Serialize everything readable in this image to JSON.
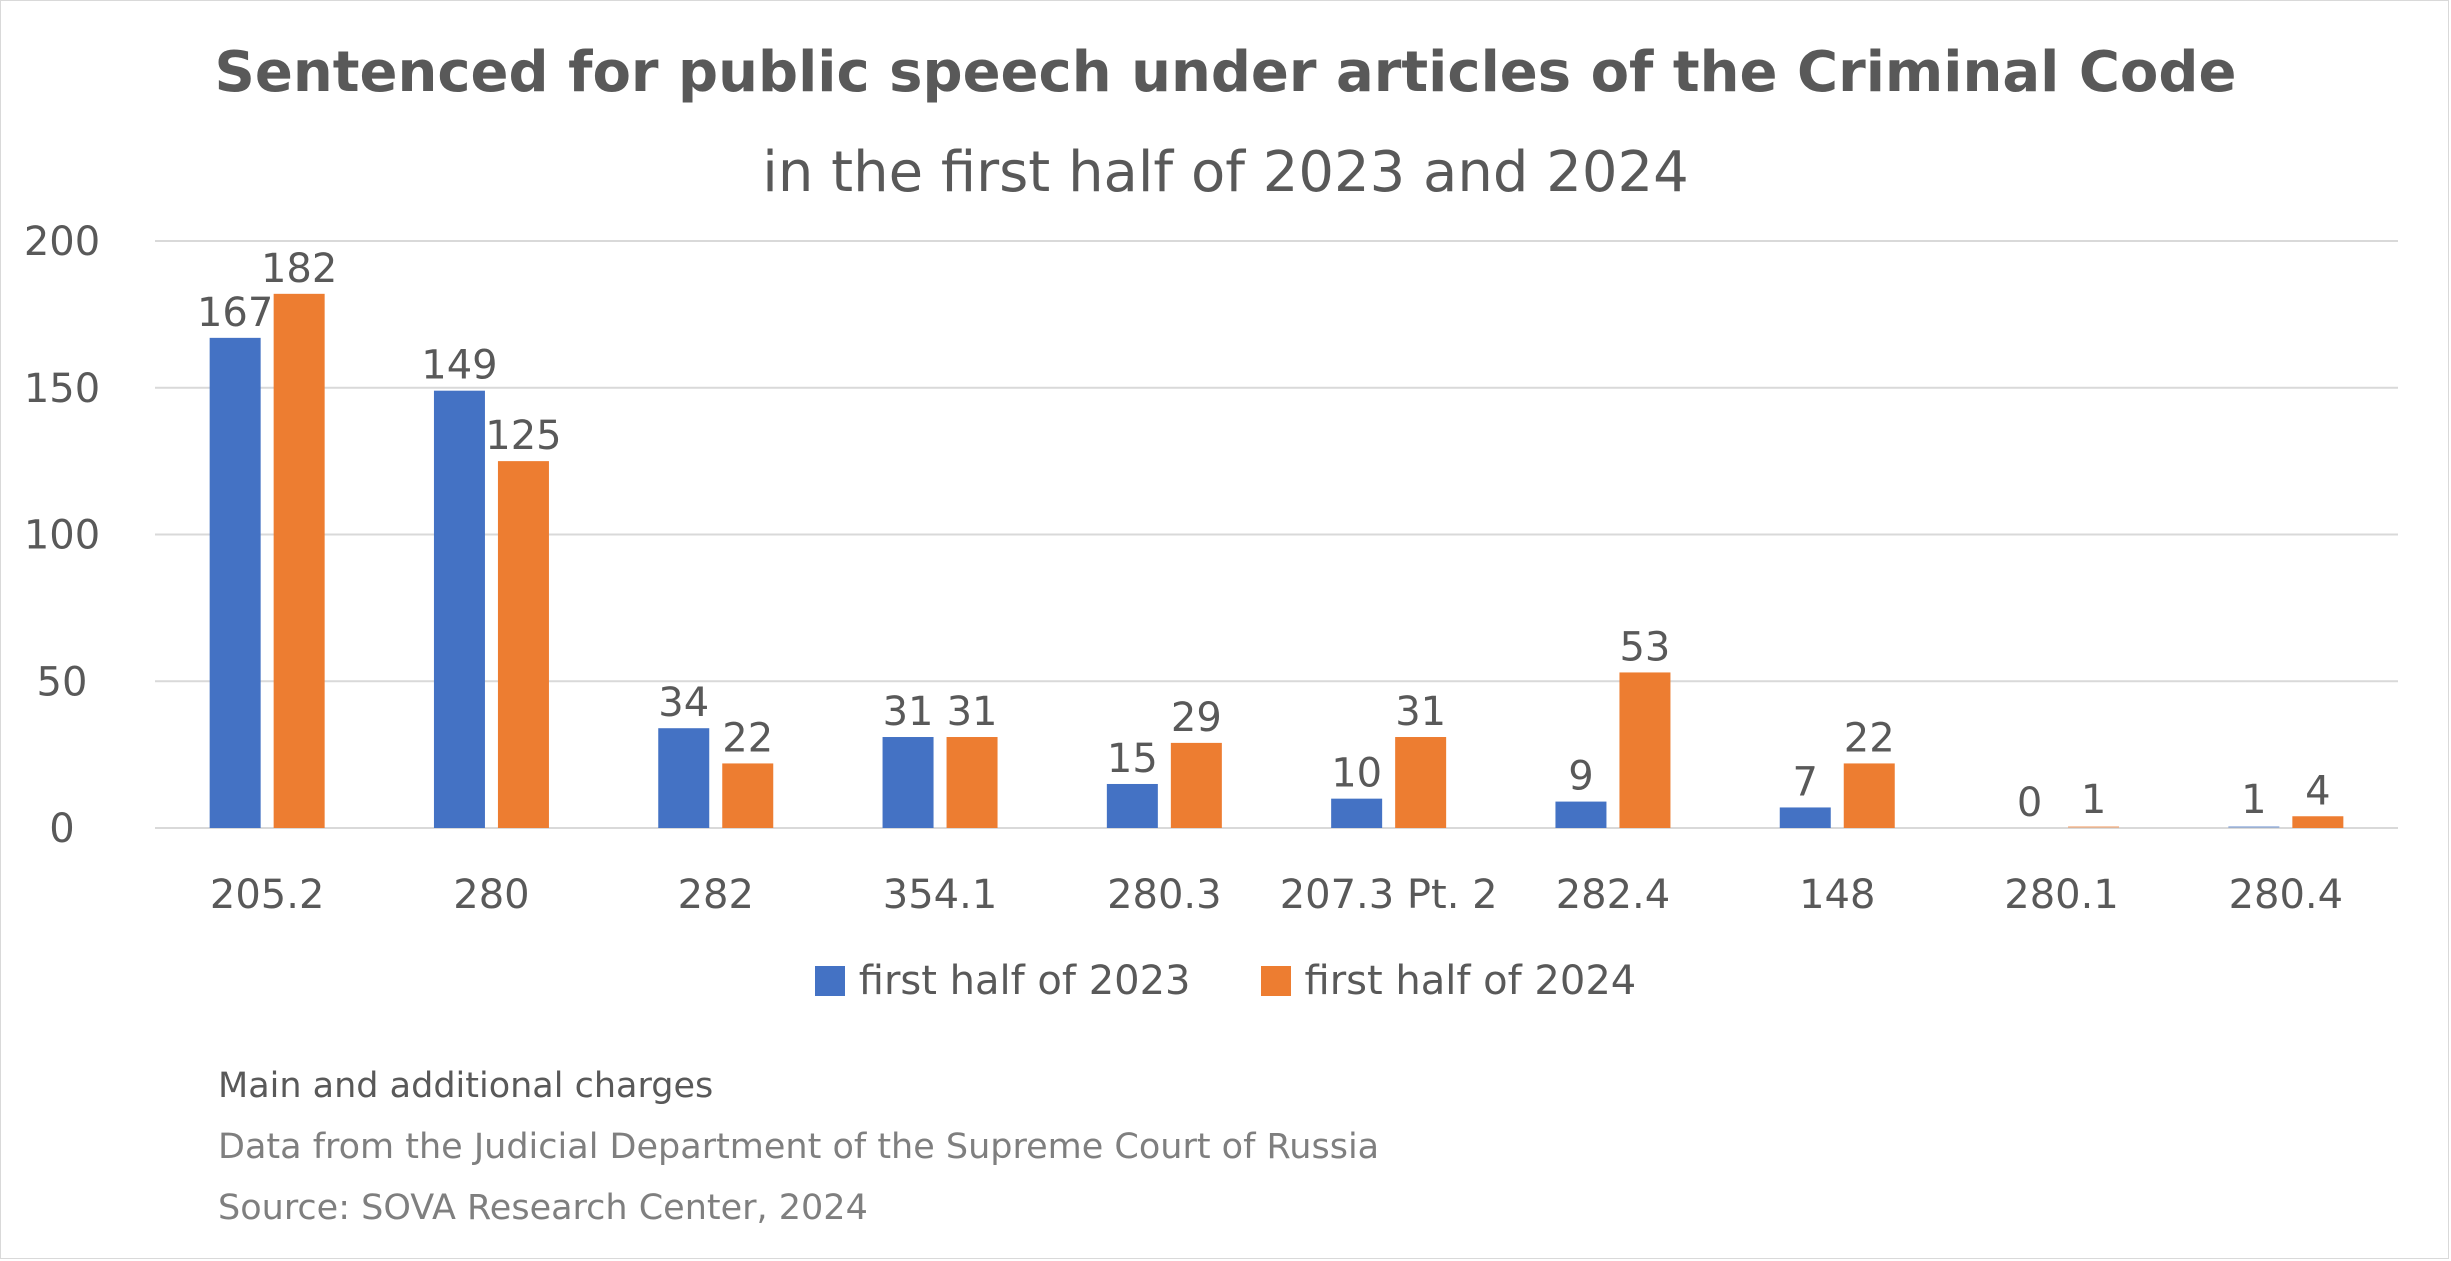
{
  "colors": {
    "series_2023": "#4472C4",
    "series_2024": "#ED7D31",
    "grid": "#d9d9d9",
    "text": "#595959"
  },
  "legend": {
    "item_2023": "first half of 2023",
    "item_2024": "first half of 2024"
  },
  "notes": {
    "line1": "Main and additional charges",
    "line2": "Data from the Judicial Department of the Supreme Court of Russia",
    "line3": "Source:  SOVA Research Center, 2024"
  },
  "chart_data": {
    "type": "bar",
    "title": "Sentenced for public speech under articles of the Criminal Code",
    "subtitle": "in the first half of 2023 and 2024",
    "categories": [
      "205.2",
      "280",
      "282",
      "354.1",
      "280.3",
      "207.3 Pt. 2",
      "282.4",
      "148",
      "280.1",
      "280.4"
    ],
    "series": [
      {
        "name": "first half of 2023",
        "values": [
          167,
          149,
          34,
          31,
          15,
          10,
          9,
          7,
          0,
          1
        ]
      },
      {
        "name": "first half of 2024",
        "values": [
          182,
          125,
          22,
          31,
          29,
          31,
          53,
          22,
          1,
          4
        ]
      }
    ],
    "ylim": [
      0,
      200
    ],
    "yticks": [
      "0",
      "50",
      "100",
      "150",
      "200"
    ],
    "grid": true,
    "legend_position": "bottom",
    "xlabel": "",
    "ylabel": ""
  }
}
